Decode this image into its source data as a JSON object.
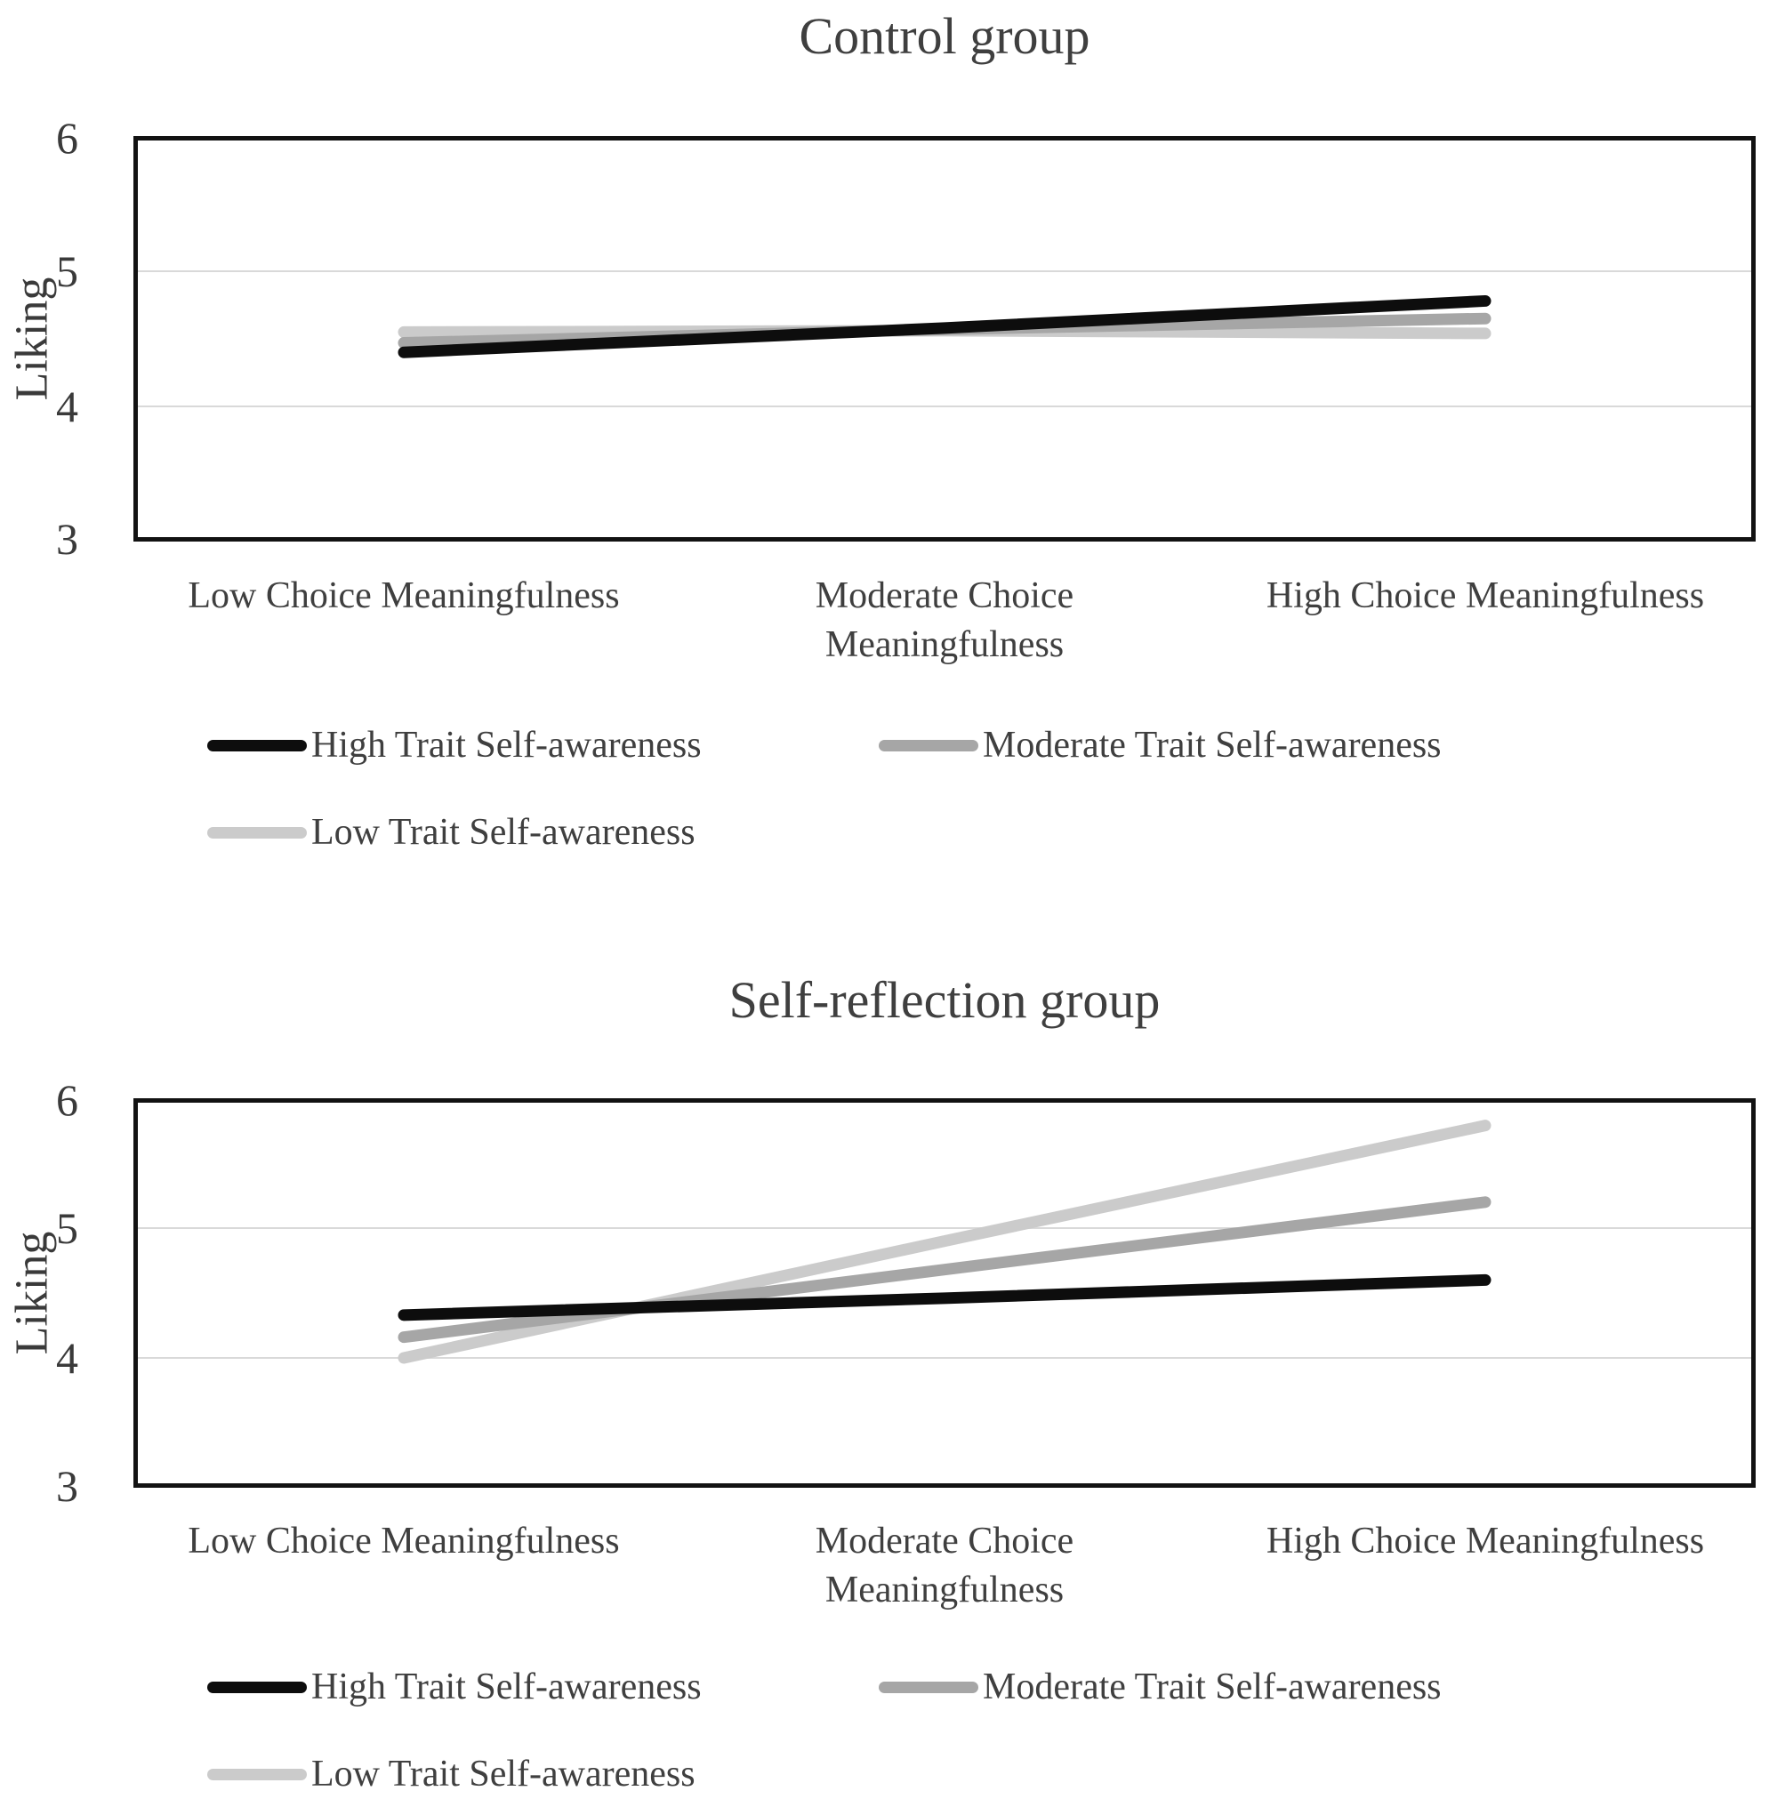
{
  "styles": {
    "grid_color": "#d9d9d9",
    "border_color": "#121212",
    "text_color": "#3f3f3f",
    "line_width": 13
  },
  "chart_data": [
    {
      "type": "line",
      "title": "Control group",
      "ylabel": "Liking",
      "xlabel": "",
      "ylim": [
        3,
        6
      ],
      "yticks": [
        6,
        5,
        4,
        3
      ],
      "gridlines": [
        5,
        4
      ],
      "grid": "on",
      "legend_position": "bottom",
      "categories": [
        "Low Choice Meaningfulness",
        "Moderate Choice Meaningfulness",
        "High Choice Meaningfulness"
      ],
      "series": [
        {
          "name": "High Trait Self-awareness",
          "color": "#0d0d0d",
          "values": [
            4.4,
            4.58,
            4.78
          ]
        },
        {
          "name": "Moderate Trait Self-awareness",
          "color": "#a6a6a6",
          "values": [
            4.47,
            4.57,
            4.65
          ]
        },
        {
          "name": "Low Trait Self-awareness",
          "color": "#cbcbcb",
          "values": [
            4.55,
            4.56,
            4.54
          ]
        }
      ]
    },
    {
      "type": "line",
      "title": "Self-reflection group",
      "ylabel": "Liking",
      "xlabel": "",
      "ylim": [
        3,
        6
      ],
      "yticks": [
        6,
        5,
        4,
        3
      ],
      "gridlines": [
        5,
        4
      ],
      "grid": "on",
      "legend_position": "bottom",
      "categories": [
        "Low Choice Meaningfulness",
        "Moderate Choice Meaningfulness",
        "High Choice Meaningfulness"
      ],
      "series": [
        {
          "name": "High Trait Self-awareness",
          "color": "#0d0d0d",
          "values": [
            4.33,
            4.46,
            4.6
          ]
        },
        {
          "name": "Moderate Trait Self-awareness",
          "color": "#a6a6a6",
          "values": [
            4.16,
            4.68,
            5.2
          ]
        },
        {
          "name": "Low Trait Self-awareness",
          "color": "#cbcbcb",
          "values": [
            4.0,
            4.9,
            5.79
          ]
        }
      ]
    }
  ]
}
